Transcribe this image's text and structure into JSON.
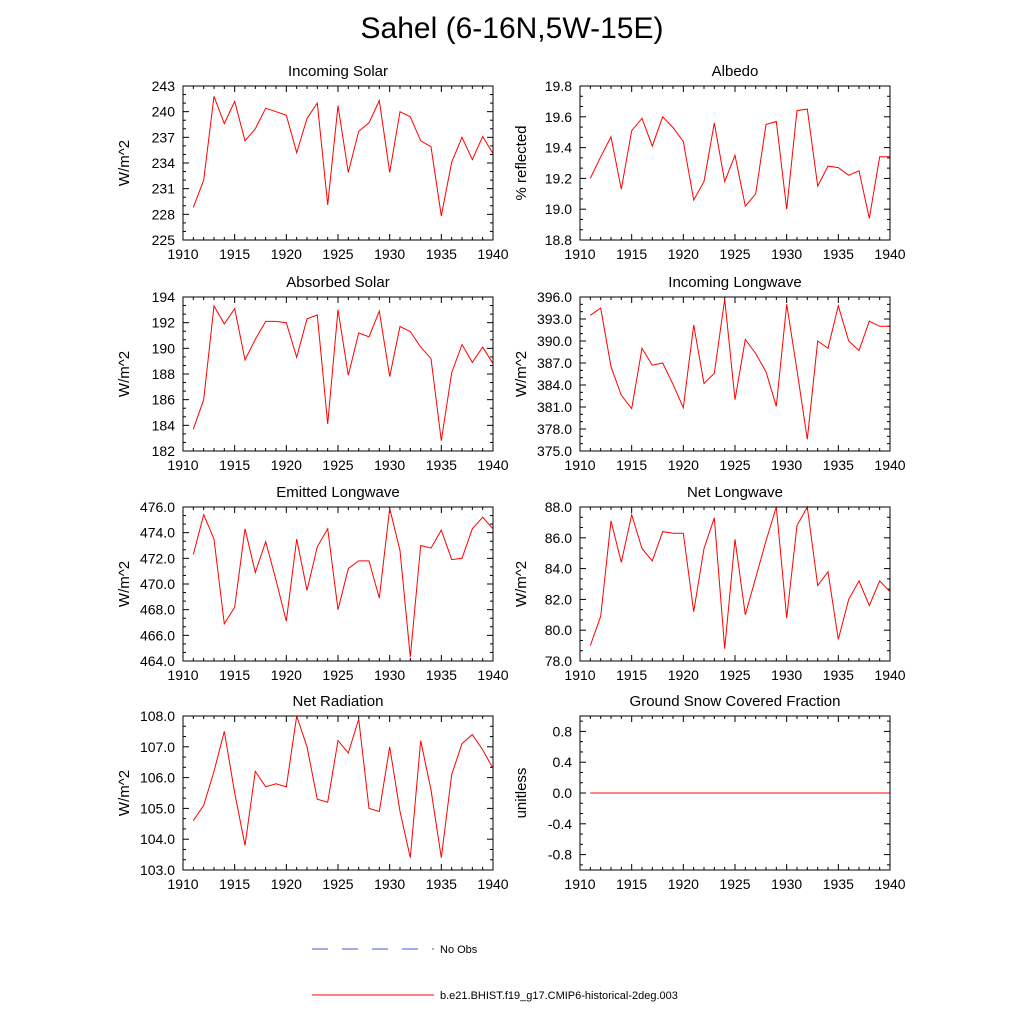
{
  "title": "Sahel (6-16N,5W-15E)",
  "legend": {
    "obs_label": "No Obs",
    "obs_color": "#3b5bdb",
    "model_label": "b.e21.BHIST.f19_g17.CMIP6-historical-2deg.003",
    "model_color": "#ff0000"
  },
  "chart_data": [
    {
      "type": "line",
      "title": "Incoming Solar",
      "ylabel": "W/m^2",
      "xlim": [
        1910,
        1940
      ],
      "xticks": [
        1910,
        1915,
        1920,
        1925,
        1930,
        1935,
        1940
      ],
      "ylim": [
        225,
        243
      ],
      "yticks": [
        "225",
        "228",
        "231",
        "234",
        "237",
        "240",
        "243"
      ],
      "x": [
        1911,
        1912,
        1913,
        1914,
        1915,
        1916,
        1917,
        1918,
        1919,
        1920,
        1921,
        1922,
        1923,
        1924,
        1925,
        1926,
        1927,
        1928,
        1929,
        1930,
        1931,
        1932,
        1933,
        1934,
        1935,
        1936,
        1937,
        1938,
        1939,
        1940
      ],
      "series": [
        {
          "values": [
            228.8,
            232,
            241.8,
            238.6,
            241.2,
            236.6,
            238,
            240.4,
            240,
            239.6,
            235.2,
            239.2,
            241,
            229.1,
            240.7,
            232.9,
            237.7,
            238.7,
            241.3,
            232.9,
            240,
            239.4,
            236.6,
            235.9,
            227.8,
            234.1,
            237,
            234.4,
            237.1,
            235.1
          ]
        }
      ]
    },
    {
      "type": "line",
      "title": "Albedo",
      "ylabel": "% reflected",
      "xlim": [
        1910,
        1940
      ],
      "xticks": [
        1910,
        1915,
        1920,
        1925,
        1930,
        1935,
        1940
      ],
      "ylim": [
        18.8,
        19.8
      ],
      "yticks": [
        "18.8",
        "19.0",
        "19.2",
        "19.4",
        "19.6",
        "19.8"
      ],
      "x": [
        1911,
        1912,
        1913,
        1914,
        1915,
        1916,
        1917,
        1918,
        1919,
        1920,
        1921,
        1922,
        1923,
        1924,
        1925,
        1926,
        1927,
        1928,
        1929,
        1930,
        1931,
        1932,
        1933,
        1934,
        1935,
        1936,
        1937,
        1938,
        1939,
        1940
      ],
      "series": [
        {
          "values": [
            19.2,
            19.34,
            19.47,
            19.13,
            19.51,
            19.59,
            19.41,
            19.6,
            19.53,
            19.44,
            19.06,
            19.18,
            19.56,
            19.18,
            19.35,
            19.02,
            19.1,
            19.55,
            19.57,
            19,
            19.64,
            19.65,
            19.15,
            19.28,
            19.27,
            19.22,
            19.25,
            18.94,
            19.34,
            19.34
          ]
        }
      ]
    },
    {
      "type": "line",
      "title": "Absorbed Solar",
      "ylabel": "W/m^2",
      "xlim": [
        1910,
        1940
      ],
      "xticks": [
        1910,
        1915,
        1920,
        1925,
        1930,
        1935,
        1940
      ],
      "ylim": [
        182,
        194
      ],
      "yticks": [
        "182",
        "184",
        "186",
        "188",
        "190",
        "192",
        "194"
      ],
      "x": [
        1911,
        1912,
        1913,
        1914,
        1915,
        1916,
        1917,
        1918,
        1919,
        1920,
        1921,
        1922,
        1923,
        1924,
        1925,
        1926,
        1927,
        1928,
        1929,
        1930,
        1931,
        1932,
        1933,
        1934,
        1935,
        1936,
        1937,
        1938,
        1939,
        1940
      ],
      "series": [
        {
          "values": [
            183.7,
            186,
            193.3,
            191.9,
            193.1,
            189.1,
            190.7,
            192.1,
            192.1,
            192,
            189.3,
            192.3,
            192.6,
            184.1,
            193,
            187.9,
            191.2,
            190.9,
            192.9,
            187.8,
            191.7,
            191.3,
            190.1,
            189.2,
            182.8,
            188.1,
            190.3,
            188.9,
            190.1,
            188.8
          ]
        }
      ]
    },
    {
      "type": "line",
      "title": "Incoming Longwave",
      "ylabel": "W/m^2",
      "xlim": [
        1910,
        1940
      ],
      "xticks": [
        1910,
        1915,
        1920,
        1925,
        1930,
        1935,
        1940
      ],
      "ylim": [
        375,
        396
      ],
      "yticks": [
        "375.0",
        "378.0",
        "381.0",
        "384.0",
        "387.0",
        "390.0",
        "393.0",
        "396.0"
      ],
      "x": [
        1911,
        1912,
        1913,
        1914,
        1915,
        1916,
        1917,
        1918,
        1919,
        1920,
        1921,
        1922,
        1923,
        1924,
        1925,
        1926,
        1927,
        1928,
        1929,
        1930,
        1931,
        1932,
        1933,
        1934,
        1935,
        1936,
        1937,
        1938,
        1939,
        1940
      ],
      "series": [
        {
          "values": [
            393.5,
            394.5,
            386.5,
            382.6,
            380.8,
            389,
            386.7,
            387,
            384.1,
            380.9,
            392.2,
            384.2,
            385.6,
            395.7,
            382,
            390.2,
            388.3,
            385.8,
            381.1,
            395,
            386,
            376.6,
            390,
            389,
            394.8,
            390,
            388.7,
            392.7,
            392,
            392
          ]
        }
      ]
    },
    {
      "type": "line",
      "title": "Emitted Longwave",
      "ylabel": "W/m^2",
      "xlim": [
        1910,
        1940
      ],
      "xticks": [
        1910,
        1915,
        1920,
        1925,
        1930,
        1935,
        1940
      ],
      "ylim": [
        464,
        476
      ],
      "yticks": [
        "464.0",
        "466.0",
        "468.0",
        "470.0",
        "472.0",
        "474.0",
        "476.0"
      ],
      "x": [
        1911,
        1912,
        1913,
        1914,
        1915,
        1916,
        1917,
        1918,
        1919,
        1920,
        1921,
        1922,
        1923,
        1924,
        1925,
        1926,
        1927,
        1928,
        1929,
        1930,
        1931,
        1932,
        1933,
        1934,
        1935,
        1936,
        1937,
        1938,
        1939,
        1940
      ],
      "series": [
        {
          "values": [
            472.3,
            475.4,
            473.5,
            466.9,
            468.2,
            474.3,
            470.9,
            473.3,
            470.3,
            467.1,
            473.5,
            469.5,
            472.9,
            474.3,
            468,
            471.2,
            471.8,
            471.8,
            468.9,
            475.9,
            472.6,
            464.3,
            473,
            472.8,
            474.2,
            471.9,
            472,
            474.3,
            475.2,
            474.3
          ]
        }
      ]
    },
    {
      "type": "line",
      "title": "Net Longwave",
      "ylabel": "W/m^2",
      "xlim": [
        1910,
        1940
      ],
      "xticks": [
        1910,
        1915,
        1920,
        1925,
        1930,
        1935,
        1940
      ],
      "ylim": [
        78,
        88
      ],
      "yticks": [
        "78.0",
        "80.0",
        "82.0",
        "84.0",
        "86.0",
        "88.0"
      ],
      "x": [
        1911,
        1912,
        1913,
        1914,
        1915,
        1916,
        1917,
        1918,
        1919,
        1920,
        1921,
        1922,
        1923,
        1924,
        1925,
        1926,
        1927,
        1928,
        1929,
        1930,
        1931,
        1932,
        1933,
        1934,
        1935,
        1936,
        1937,
        1938,
        1939,
        1940
      ],
      "series": [
        {
          "values": [
            79,
            80.9,
            87.1,
            84.4,
            87.5,
            85.3,
            84.5,
            86.4,
            86.3,
            86.3,
            81.2,
            85.3,
            87.3,
            78.8,
            85.9,
            81,
            83.4,
            85.8,
            88,
            80.8,
            86.8,
            88,
            82.9,
            83.8,
            79.4,
            82,
            83.2,
            81.6,
            83.2,
            82.5
          ]
        }
      ]
    },
    {
      "type": "line",
      "title": "Net Radiation",
      "ylabel": "W/m^2",
      "xlim": [
        1910,
        1940
      ],
      "xticks": [
        1910,
        1915,
        1920,
        1925,
        1930,
        1935,
        1940
      ],
      "ylim": [
        103,
        108
      ],
      "yticks": [
        "103.0",
        "104.0",
        "105.0",
        "106.0",
        "107.0",
        "108.0"
      ],
      "x": [
        1911,
        1912,
        1913,
        1914,
        1915,
        1916,
        1917,
        1918,
        1919,
        1920,
        1921,
        1922,
        1923,
        1924,
        1925,
        1926,
        1927,
        1928,
        1929,
        1930,
        1931,
        1932,
        1933,
        1934,
        1935,
        1936,
        1937,
        1938,
        1939,
        1940
      ],
      "series": [
        {
          "values": [
            104.6,
            105.1,
            106.2,
            107.5,
            105.5,
            103.8,
            106.2,
            105.7,
            105.8,
            105.7,
            108,
            107,
            105.3,
            105.2,
            107.2,
            106.8,
            107.9,
            105,
            104.9,
            107,
            104.9,
            103.4,
            107.2,
            105.6,
            103.4,
            106.1,
            107.1,
            107.4,
            106.9,
            106.3
          ]
        }
      ]
    },
    {
      "type": "line",
      "title": "Ground Snow Covered Fraction",
      "ylabel": "unitless",
      "xlim": [
        1910,
        1940
      ],
      "xticks": [
        1910,
        1915,
        1920,
        1925,
        1930,
        1935,
        1940
      ],
      "ylim": [
        -1.0,
        1.0
      ],
      "yticks": [
        "-0.8",
        "-0.4",
        "0.0",
        "0.4",
        "0.8"
      ],
      "x": [
        1911,
        1912,
        1913,
        1914,
        1915,
        1916,
        1917,
        1918,
        1919,
        1920,
        1921,
        1922,
        1923,
        1924,
        1925,
        1926,
        1927,
        1928,
        1929,
        1930,
        1931,
        1932,
        1933,
        1934,
        1935,
        1936,
        1937,
        1938,
        1939,
        1940
      ],
      "series": [
        {
          "values": [
            0,
            0,
            0,
            0,
            0,
            0,
            0,
            0,
            0,
            0,
            0,
            0,
            0,
            0,
            0,
            0,
            0,
            0,
            0,
            0,
            0,
            0,
            0,
            0,
            0,
            0,
            0,
            0,
            0,
            0
          ]
        }
      ]
    }
  ]
}
